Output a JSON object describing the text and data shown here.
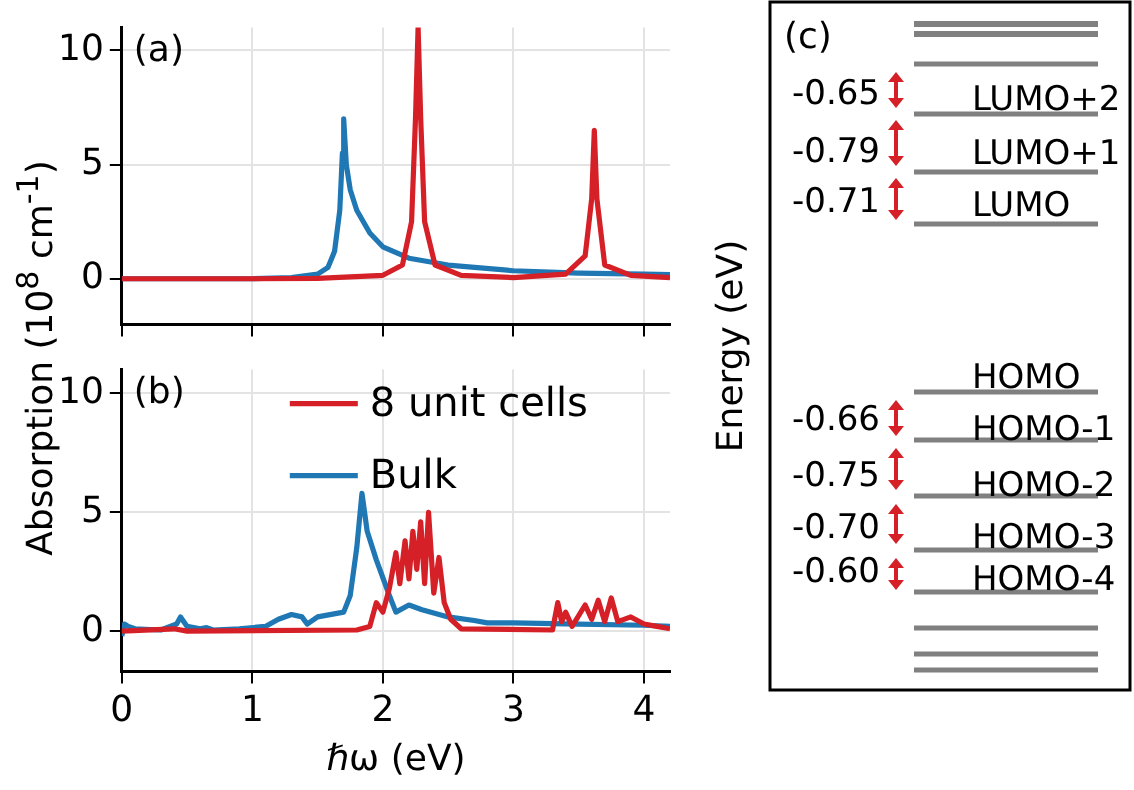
{
  "chart_data": [
    {
      "type": "line",
      "ylabel": "Absorption (10$^{8}$ cm$^{-1}$)",
      "annotations": [
        "(a)"
      ],
      "xlim": [
        0,
        4.2
      ],
      "xticks": [
        0,
        1,
        2,
        3,
        4
      ],
      "ylim": [
        -2,
        11
      ],
      "yticks": [
        0,
        5,
        10
      ],
      "grid": true,
      "tick_labels": "y",
      "series": [
        {
          "color": "#d62027",
          "x": [
            0,
            1,
            1.5,
            2.0,
            2.15,
            2.22,
            2.25,
            2.27,
            2.29,
            2.32,
            2.4,
            2.6,
            3.0,
            3.4,
            3.55,
            3.6,
            3.62,
            3.64,
            3.7,
            3.9,
            4.2
          ],
          "values": [
            0,
            0,
            0.02,
            0.15,
            0.6,
            2.5,
            7,
            11,
            7,
            2.5,
            0.6,
            0.15,
            0.05,
            0.2,
            1.0,
            3.5,
            6.5,
            3.5,
            0.6,
            0.15,
            0.05
          ]
        },
        {
          "color": "#1f77b4",
          "x": [
            0,
            0.5,
            1.0,
            1.3,
            1.5,
            1.58,
            1.63,
            1.67,
            1.69,
            1.7,
            1.72,
            1.75,
            1.8,
            1.9,
            2.0,
            2.2,
            2.5,
            3.0,
            3.5,
            4.0,
            4.2
          ],
          "values": [
            0,
            0,
            0,
            0.05,
            0.2,
            0.5,
            1.2,
            3.0,
            5.5,
            7.0,
            5.0,
            3.9,
            3.0,
            2.0,
            1.4,
            0.9,
            0.6,
            0.35,
            0.25,
            0.2,
            0.18
          ]
        }
      ]
    },
    {
      "type": "line",
      "xlabel": "ℏω (eV)",
      "annotations": [
        "(b)"
      ],
      "xlim": [
        0,
        4.2
      ],
      "xticks": [
        0,
        1,
        2,
        3,
        4
      ],
      "ylim": [
        -1.7,
        11
      ],
      "yticks": [
        0,
        5,
        10
      ],
      "grid": true,
      "legend": "top",
      "series": [
        {
          "name": "8 unit cells",
          "color": "#d62027",
          "x": [
            0,
            0.4,
            0.5,
            1.8,
            1.9,
            1.95,
            2.0,
            2.05,
            2.1,
            2.13,
            2.17,
            2.2,
            2.23,
            2.26,
            2.29,
            2.32,
            2.35,
            2.39,
            2.43,
            2.47,
            2.52,
            2.6,
            3.3,
            3.34,
            3.37,
            3.4,
            3.45,
            3.55,
            3.6,
            3.65,
            3.7,
            3.75,
            3.8,
            3.9,
            4.0,
            4.1,
            4.2
          ],
          "values": [
            0,
            0.1,
            0,
            0.05,
            0.2,
            1.2,
            0.8,
            1.8,
            3.3,
            2.0,
            3.8,
            2.2,
            4.2,
            2.6,
            4.6,
            2.0,
            5.0,
            1.6,
            3.1,
            1.2,
            0.5,
            0.1,
            0.05,
            1.2,
            0.4,
            0.8,
            0.2,
            1.1,
            0.5,
            1.3,
            0.4,
            1.4,
            0.4,
            0.6,
            0.3,
            0.2,
            0.1
          ]
        },
        {
          "name": "Bulk",
          "color": "#1f77b4",
          "x": [
            0,
            0.02,
            0.05,
            0.1,
            0.3,
            0.42,
            0.45,
            0.5,
            0.6,
            0.65,
            0.7,
            0.9,
            1.1,
            1.2,
            1.3,
            1.38,
            1.42,
            1.5,
            1.7,
            1.75,
            1.8,
            1.84,
            1.88,
            1.95,
            2.05,
            2.1,
            2.2,
            2.3,
            2.5,
            2.7,
            2.8,
            3.0,
            3.5,
            4.0,
            4.2
          ],
          "values": [
            -0.2,
            0.3,
            0.2,
            0.1,
            0.05,
            0.3,
            0.6,
            0.2,
            0.1,
            0.15,
            0.05,
            0.1,
            0.2,
            0.5,
            0.7,
            0.6,
            0.3,
            0.6,
            0.8,
            1.5,
            3.5,
            5.8,
            4.2,
            3.0,
            1.5,
            0.8,
            1.1,
            0.9,
            0.6,
            0.45,
            0.35,
            0.35,
            0.3,
            0.25,
            0.2
          ]
        }
      ]
    },
    {
      "type": "other",
      "ylabel": "Energy (eV)",
      "annotations": [
        "(c)",
        "-0.65",
        "-0.79",
        "-0.71",
        "-0.66",
        "-0.75",
        "-0.70",
        "-0.60",
        "LUMO+2",
        "LUMO+1",
        "LUMO",
        "HOMO",
        "HOMO-1",
        "HOMO-2",
        "HOMO-3",
        "HOMO-4"
      ]
    }
  ]
}
